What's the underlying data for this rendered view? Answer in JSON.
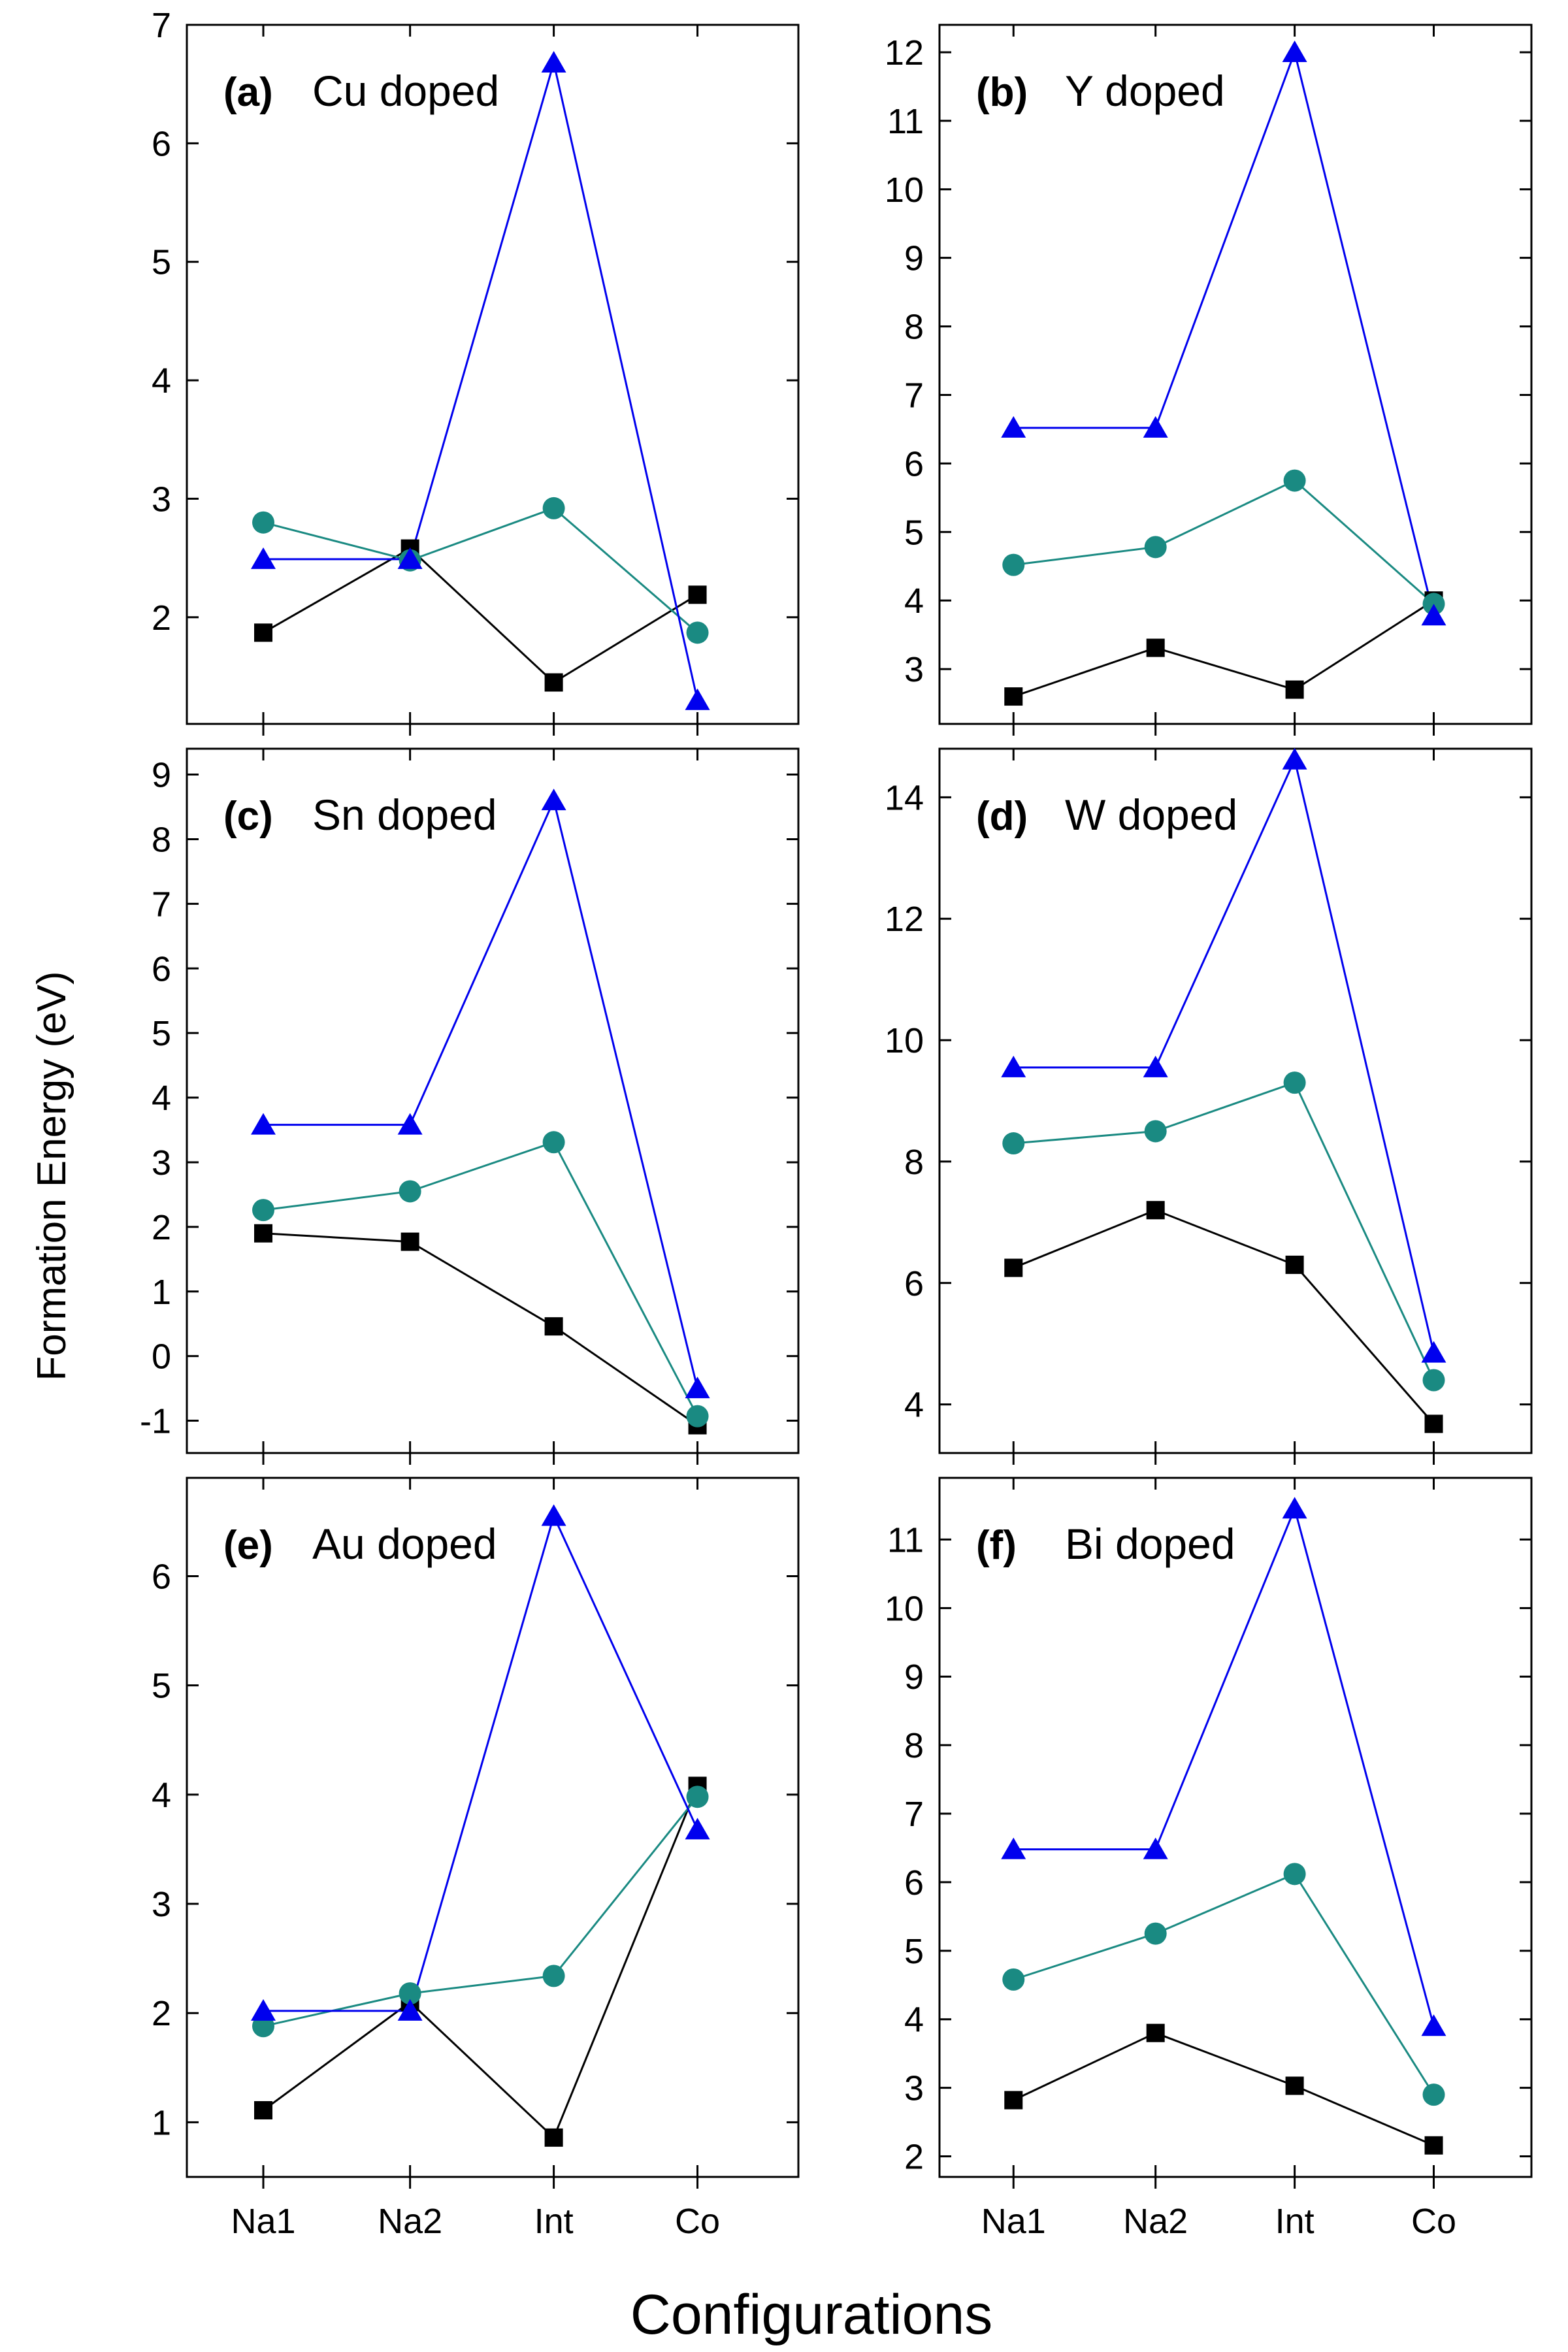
{
  "figure": {
    "ylabel": "Formation Energy (eV)",
    "xlabel": "Configurations"
  },
  "colors": {
    "series_black": "#000000",
    "series_teal": "#1a8a82",
    "series_blue": "#0000ee"
  },
  "chart_data": [
    {
      "type": "line",
      "panel_label": "(a)",
      "title": "Cu doped",
      "categories": [
        "Na1",
        "Na2",
        "Int",
        "Co"
      ],
      "ylim": [
        1.1,
        7.0
      ],
      "yticks": [
        2,
        3,
        4,
        5,
        6,
        7
      ],
      "show_xtick_labels": false,
      "series": [
        {
          "name": "square",
          "marker": "square",
          "color": "#000000",
          "values": [
            1.87,
            2.58,
            1.45,
            2.19
          ]
        },
        {
          "name": "circle",
          "marker": "circle",
          "color": "#1a8a82",
          "values": [
            2.8,
            2.48,
            2.92,
            1.87
          ]
        },
        {
          "name": "triangle",
          "marker": "triangle",
          "color": "#0000ee",
          "values": [
            2.49,
            2.49,
            6.68,
            1.3
          ]
        }
      ]
    },
    {
      "type": "line",
      "panel_label": "(b)",
      "title": "Y doped",
      "categories": [
        "Na1",
        "Na2",
        "Int",
        "Co"
      ],
      "ylim": [
        2.2,
        12.4
      ],
      "yticks": [
        3,
        4,
        5,
        6,
        7,
        8,
        9,
        10,
        11,
        12
      ],
      "show_xtick_labels": false,
      "series": [
        {
          "name": "square",
          "marker": "square",
          "color": "#000000",
          "values": [
            2.6,
            3.31,
            2.7,
            4.0
          ]
        },
        {
          "name": "circle",
          "marker": "circle",
          "color": "#1a8a82",
          "values": [
            4.52,
            4.78,
            5.75,
            3.95
          ]
        },
        {
          "name": "triangle",
          "marker": "triangle",
          "color": "#0000ee",
          "values": [
            6.52,
            6.52,
            12.0,
            3.78
          ]
        }
      ]
    },
    {
      "type": "line",
      "panel_label": "(c)",
      "title": "Sn doped",
      "categories": [
        "Na1",
        "Na2",
        "Int",
        "Co"
      ],
      "ylim": [
        -1.5,
        9.4
      ],
      "yticks": [
        -1,
        0,
        1,
        2,
        3,
        4,
        5,
        6,
        7,
        8,
        9
      ],
      "ytick_labels": [
        "-1",
        "0",
        "1",
        "2",
        "3",
        "4",
        "5",
        "6",
        "7",
        "8",
        "9"
      ],
      "show_xtick_labels": false,
      "series": [
        {
          "name": "square",
          "marker": "square",
          "color": "#000000",
          "values": [
            1.9,
            1.77,
            0.46,
            -1.07
          ]
        },
        {
          "name": "circle",
          "marker": "circle",
          "color": "#1a8a82",
          "values": [
            2.26,
            2.55,
            3.31,
            -0.93
          ]
        },
        {
          "name": "triangle",
          "marker": "triangle",
          "color": "#0000ee",
          "values": [
            3.58,
            3.58,
            8.6,
            -0.5
          ]
        }
      ]
    },
    {
      "type": "line",
      "panel_label": "(d)",
      "title": "W doped",
      "categories": [
        "Na1",
        "Na2",
        "Int",
        "Co"
      ],
      "ylim": [
        3.2,
        14.8
      ],
      "yticks": [
        4,
        6,
        8,
        10,
        12,
        14
      ],
      "show_xtick_labels": false,
      "series": [
        {
          "name": "square",
          "marker": "square",
          "color": "#000000",
          "values": [
            6.25,
            7.2,
            6.3,
            3.68
          ]
        },
        {
          "name": "circle",
          "marker": "circle",
          "color": "#1a8a82",
          "values": [
            8.3,
            8.5,
            9.3,
            4.4
          ]
        },
        {
          "name": "triangle",
          "marker": "triangle",
          "color": "#0000ee",
          "values": [
            9.55,
            9.55,
            14.62,
            4.85
          ]
        }
      ]
    },
    {
      "type": "line",
      "panel_label": "(e)",
      "title": "Au doped",
      "categories": [
        "Na1",
        "Na2",
        "Int",
        "Co"
      ],
      "ylim": [
        0.5,
        6.9
      ],
      "yticks": [
        1,
        2,
        3,
        4,
        5,
        6
      ],
      "show_xtick_labels": true,
      "series": [
        {
          "name": "square",
          "marker": "square",
          "color": "#000000",
          "values": [
            1.11,
            2.1,
            0.86,
            4.08
          ]
        },
        {
          "name": "circle",
          "marker": "circle",
          "color": "#1a8a82",
          "values": [
            1.88,
            2.18,
            2.34,
            3.98
          ]
        },
        {
          "name": "triangle",
          "marker": "triangle",
          "color": "#0000ee",
          "values": [
            2.02,
            2.02,
            6.55,
            3.68
          ]
        }
      ]
    },
    {
      "type": "line",
      "panel_label": "(f)",
      "title": "Bi doped",
      "categories": [
        "Na1",
        "Na2",
        "Int",
        "Co"
      ],
      "ylim": [
        1.7,
        11.9
      ],
      "yticks": [
        2,
        3,
        4,
        5,
        6,
        7,
        8,
        9,
        10,
        11
      ],
      "show_xtick_labels": true,
      "series": [
        {
          "name": "square",
          "marker": "square",
          "color": "#000000",
          "values": [
            2.82,
            3.8,
            3.03,
            2.16
          ]
        },
        {
          "name": "circle",
          "marker": "circle",
          "color": "#1a8a82",
          "values": [
            4.58,
            5.25,
            6.12,
            2.9
          ]
        },
        {
          "name": "triangle",
          "marker": "triangle",
          "color": "#0000ee",
          "values": [
            6.48,
            6.48,
            11.45,
            3.9
          ]
        }
      ]
    }
  ]
}
